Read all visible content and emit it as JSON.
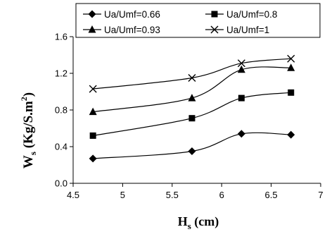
{
  "chart_data": {
    "type": "line",
    "xlabel": {
      "main": "H",
      "sub": "s",
      "rest": " (cm)"
    },
    "ylabel": {
      "main": "W",
      "sub": "s",
      "rest": " (Kg/S.m",
      "sup": "2",
      "end": ")"
    },
    "xlim": [
      4.5,
      7
    ],
    "ylim": [
      0.0,
      1.6
    ],
    "x_ticks": [
      "4.5",
      "5",
      "5.5",
      "6",
      "6.5",
      "7"
    ],
    "y_ticks": [
      "0.0",
      "0.4",
      "0.8",
      "1.2",
      "1.6"
    ],
    "grid": false,
    "legend_position": "top",
    "x": [
      4.7,
      5.7,
      6.2,
      6.7
    ],
    "series": [
      {
        "name": "Ua/Umf=0.66",
        "marker": "diamond",
        "values": [
          0.27,
          0.35,
          0.54,
          0.53
        ]
      },
      {
        "name": "Ua/Umf=0.8",
        "marker": "square",
        "values": [
          0.52,
          0.71,
          0.93,
          0.99
        ]
      },
      {
        "name": "Ua/Umf=0.93",
        "marker": "triangle",
        "values": [
          0.78,
          0.93,
          1.24,
          1.26
        ]
      },
      {
        "name": "Ua/Umf=1",
        "marker": "x",
        "values": [
          1.03,
          1.15,
          1.31,
          1.36
        ]
      }
    ]
  }
}
